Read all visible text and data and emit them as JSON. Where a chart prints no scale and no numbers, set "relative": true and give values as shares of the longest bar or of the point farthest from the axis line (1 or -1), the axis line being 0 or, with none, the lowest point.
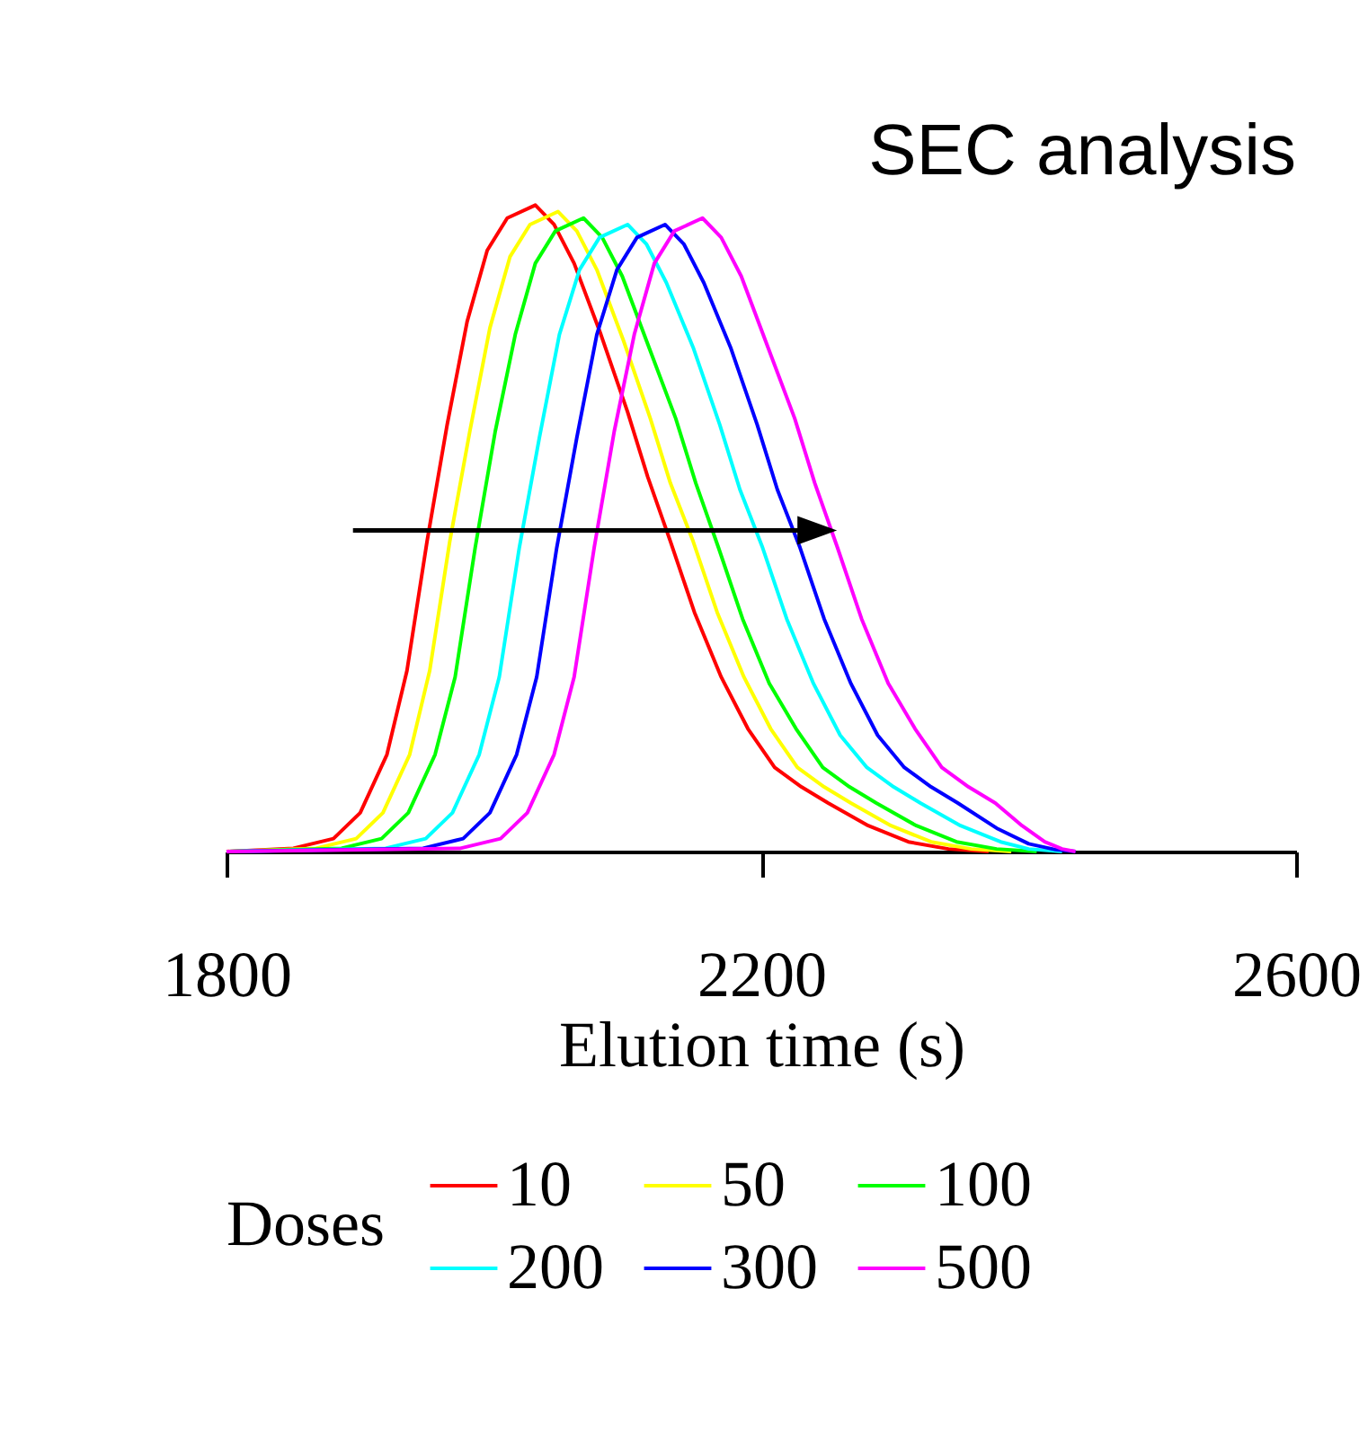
{
  "chart_data": {
    "type": "line",
    "title": "SEC analysis",
    "xlabel": "Elution time (s)",
    "legend_title": "Doses",
    "relative": true,
    "xlim": [
      1800,
      2600
    ],
    "xticks": [
      1800,
      2200,
      2600
    ],
    "legend": "bottom",
    "grid": false,
    "marker": "none",
    "line_style": "solid",
    "series": [
      {
        "name": "10",
        "color": "#ff0000",
        "x": [
          1800,
          1850,
          1880,
          1900,
          1920,
          1935,
          1950,
          1965,
          1980,
          1995,
          2010,
          2031,
          2045,
          2060,
          2080,
          2100,
          2115,
          2132,
          2150,
          2170,
          2190,
          2210,
          2230,
          2250,
          2280,
          2310,
          2340,
          2370
        ],
        "values": [
          0,
          0.005,
          0.02,
          0.06,
          0.15,
          0.28,
          0.48,
          0.66,
          0.82,
          0.93,
          0.98,
          1,
          0.97,
          0.91,
          0.8,
          0.68,
          0.58,
          0.48,
          0.37,
          0.27,
          0.19,
          0.13,
          0.1,
          0.075,
          0.04,
          0.015,
          0.004,
          0
        ]
      },
      {
        "name": "50",
        "color": "#ffff00",
        "x": [
          1800,
          1867,
          1897,
          1917,
          1937,
          1952,
          1967,
          1982,
          1997,
          2012,
          2027,
          2048,
          2062,
          2077,
          2097,
          2117,
          2132,
          2149,
          2167,
          2187,
          2207,
          2227,
          2247,
          2267,
          2297,
          2327,
          2357,
          2387
        ],
        "values": [
          0,
          0.005,
          0.02,
          0.06,
          0.15,
          0.28,
          0.48,
          0.65,
          0.81,
          0.92,
          0.97,
          0.99,
          0.96,
          0.9,
          0.79,
          0.67,
          0.57,
          0.48,
          0.37,
          0.27,
          0.19,
          0.13,
          0.1,
          0.075,
          0.04,
          0.015,
          0.004,
          0
        ]
      },
      {
        "name": "100",
        "color": "#00ff00",
        "x": [
          1800,
          1886,
          1916,
          1936,
          1956,
          1971,
          1986,
          2001,
          2016,
          2031,
          2046,
          2067,
          2081,
          2096,
          2116,
          2136,
          2151,
          2168,
          2186,
          2206,
          2226,
          2246,
          2266,
          2286,
          2316,
          2346,
          2376,
          2406
        ],
        "values": [
          0,
          0.005,
          0.02,
          0.06,
          0.15,
          0.27,
          0.47,
          0.65,
          0.8,
          0.91,
          0.96,
          0.98,
          0.95,
          0.89,
          0.78,
          0.67,
          0.57,
          0.47,
          0.36,
          0.26,
          0.19,
          0.13,
          0.1,
          0.075,
          0.04,
          0.015,
          0.004,
          0
        ]
      },
      {
        "name": "200",
        "color": "#00ffff",
        "x": [
          1800,
          1919,
          1949,
          1969,
          1989,
          2004,
          2019,
          2034,
          2049,
          2064,
          2079,
          2100,
          2114,
          2129,
          2149,
          2169,
          2184,
          2201,
          2219,
          2239,
          2259,
          2279,
          2299,
          2319,
          2349,
          2379,
          2400,
          2425
        ],
        "values": [
          0,
          0.005,
          0.02,
          0.06,
          0.15,
          0.27,
          0.47,
          0.64,
          0.8,
          0.9,
          0.95,
          0.97,
          0.94,
          0.88,
          0.78,
          0.66,
          0.56,
          0.47,
          0.36,
          0.26,
          0.18,
          0.13,
          0.1,
          0.075,
          0.04,
          0.015,
          0.004,
          0
        ]
      },
      {
        "name": "300",
        "color": "#0000ff",
        "x": [
          1800,
          1947,
          1977,
          1997,
          2017,
          2032,
          2047,
          2062,
          2077,
          2092,
          2107,
          2128,
          2142,
          2157,
          2177,
          2197,
          2212,
          2229,
          2247,
          2267,
          2287,
          2307,
          2327,
          2347,
          2377,
          2400,
          2420,
          2435
        ],
        "values": [
          0,
          0.005,
          0.02,
          0.06,
          0.15,
          0.27,
          0.47,
          0.64,
          0.8,
          0.9,
          0.95,
          0.97,
          0.94,
          0.88,
          0.78,
          0.66,
          0.56,
          0.47,
          0.36,
          0.26,
          0.18,
          0.13,
          0.1,
          0.075,
          0.035,
          0.012,
          0.003,
          0
        ]
      },
      {
        "name": "500",
        "color": "#ff00ff",
        "x": [
          1800,
          1975,
          2005,
          2025,
          2045,
          2060,
          2075,
          2090,
          2105,
          2120,
          2135,
          2156,
          2170,
          2185,
          2205,
          2225,
          2240,
          2257,
          2275,
          2295,
          2315,
          2335,
          2355,
          2375,
          2395,
          2412,
          2425,
          2435
        ],
        "values": [
          0,
          0.005,
          0.02,
          0.06,
          0.15,
          0.27,
          0.47,
          0.65,
          0.8,
          0.91,
          0.96,
          0.98,
          0.95,
          0.89,
          0.78,
          0.67,
          0.57,
          0.47,
          0.36,
          0.26,
          0.19,
          0.13,
          0.1,
          0.075,
          0.04,
          0.015,
          0.004,
          0
        ]
      }
    ]
  }
}
